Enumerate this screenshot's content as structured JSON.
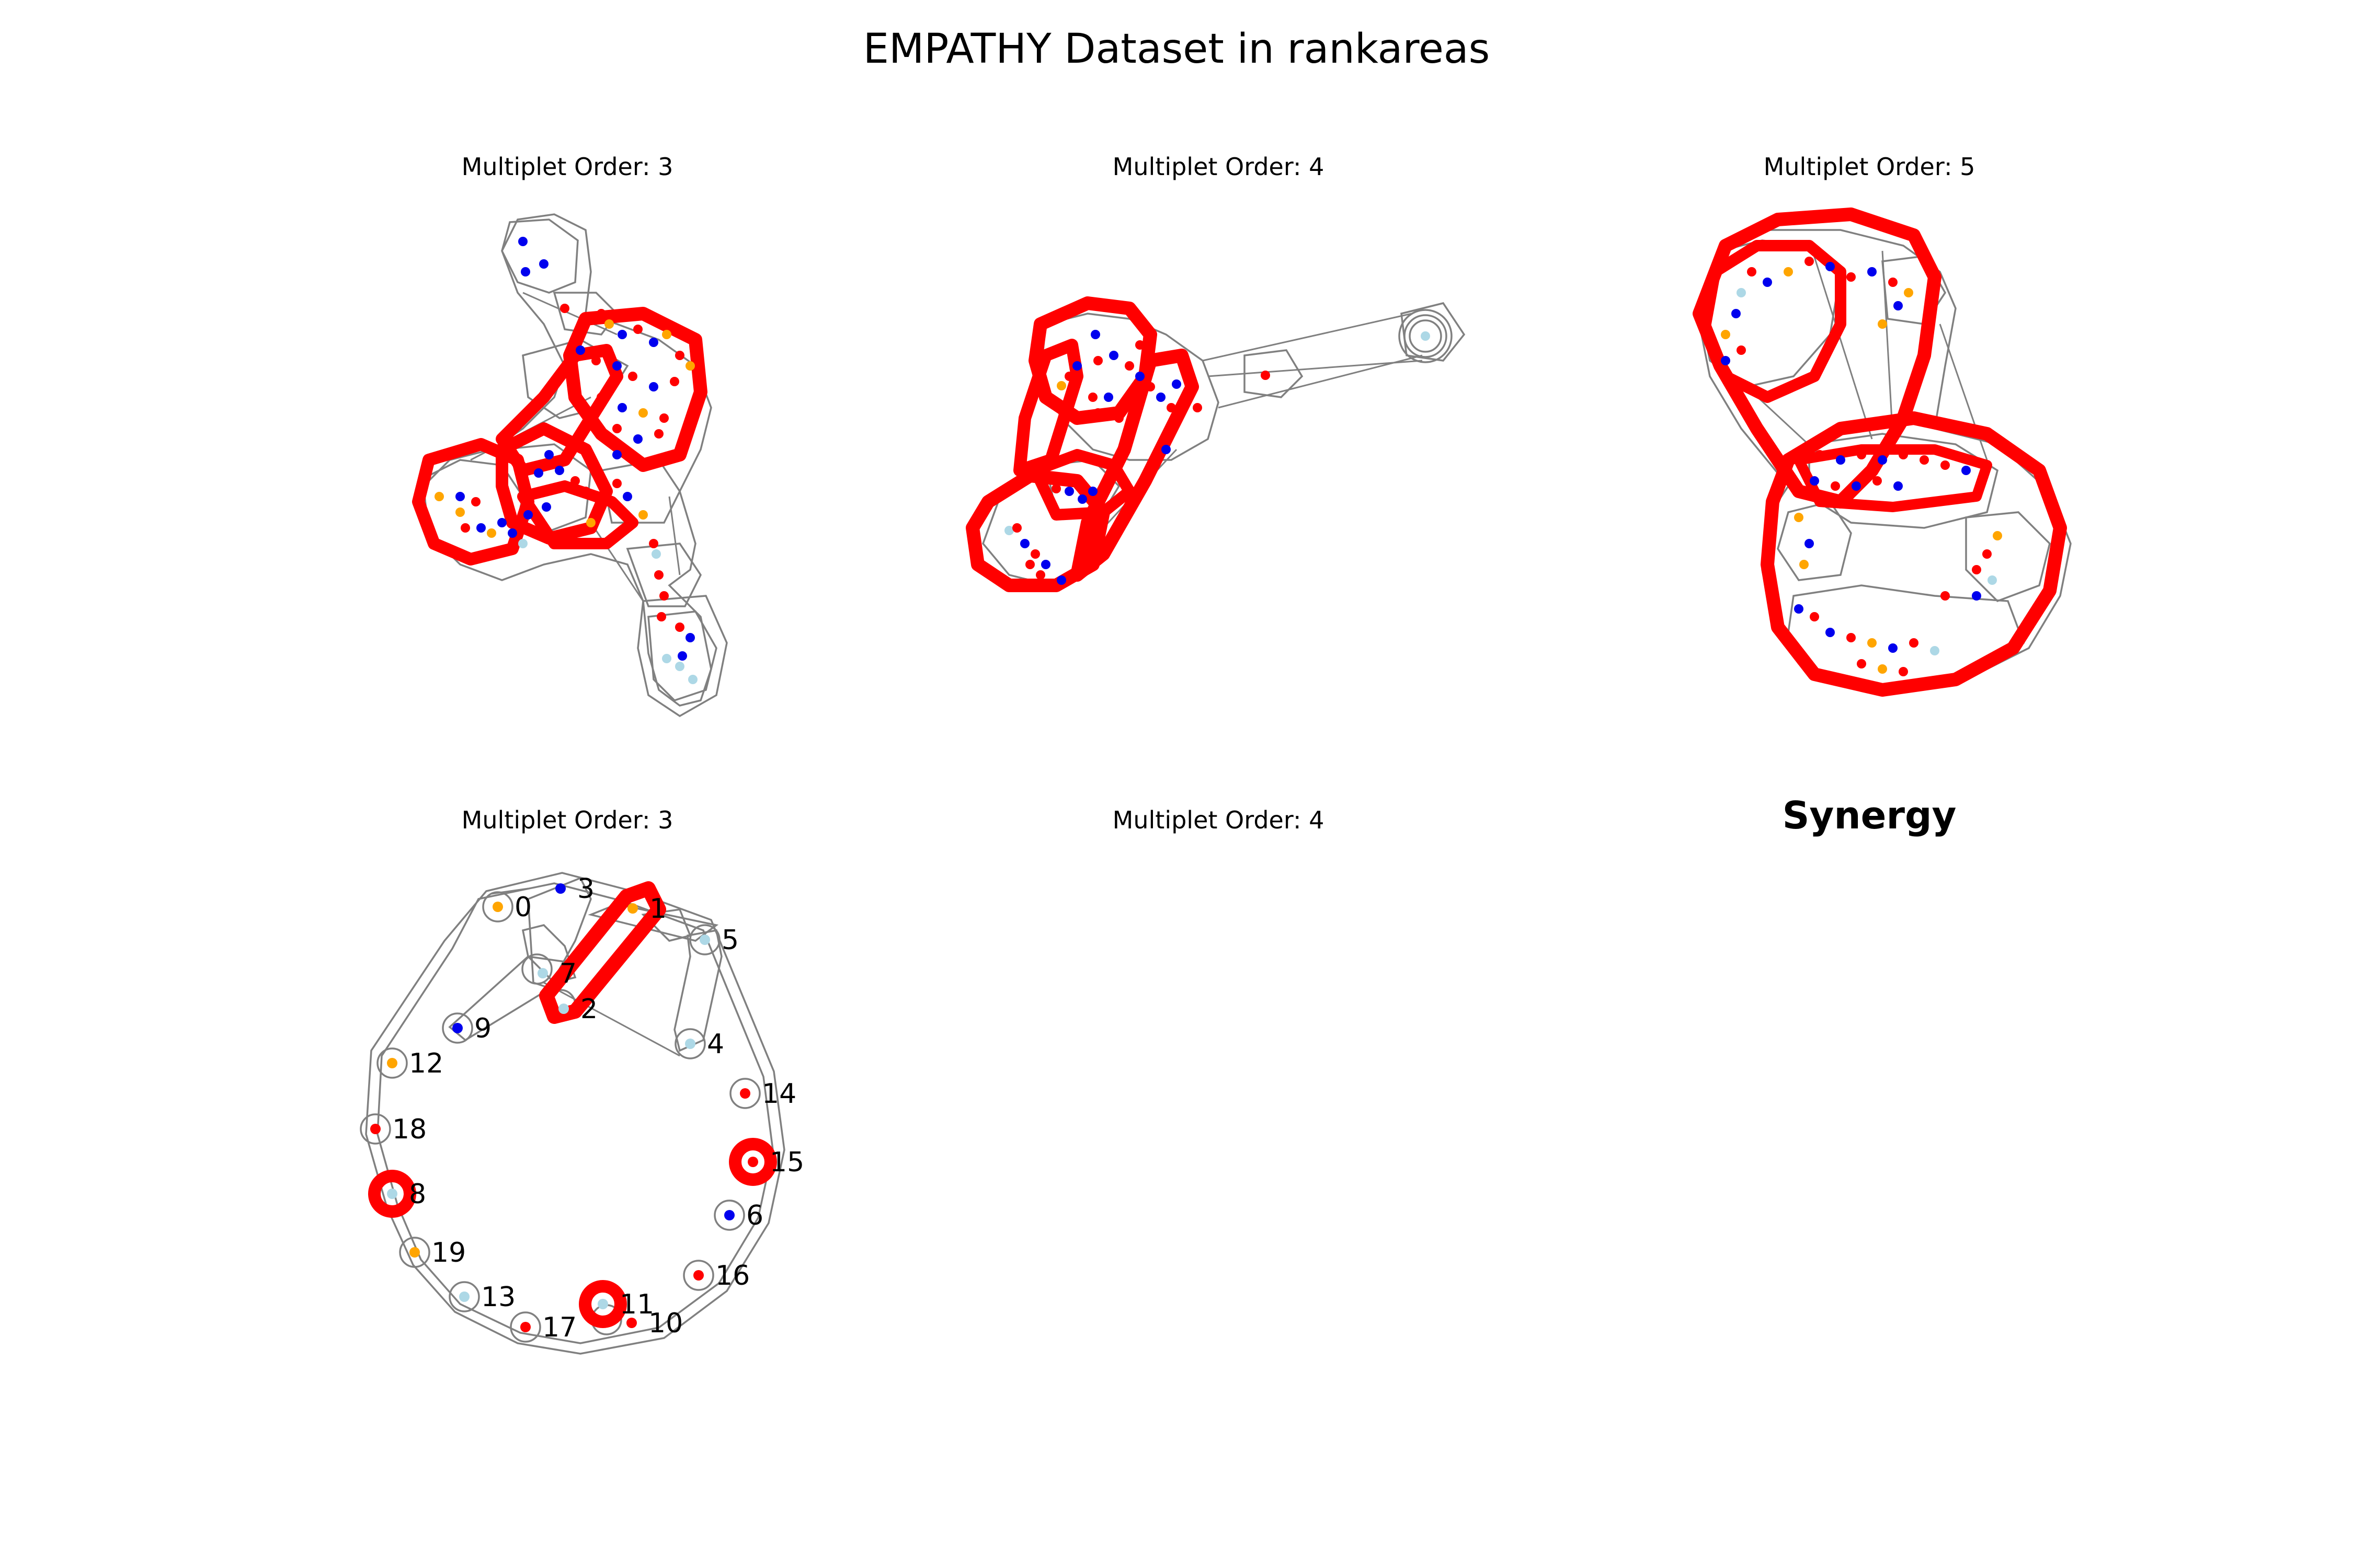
{
  "suptitle": "EMPATHY  Dataset in rankareas",
  "panel_titles": {
    "p1": "Multiplet Order: 3",
    "p2": "Multiplet Order: 4",
    "p3": "Multiplet Order: 5",
    "p4": "Multiplet Order: 3",
    "p5": "Multiplet Order: 4",
    "p6": "Synergy"
  },
  "colors": {
    "node_red": "#ff0000",
    "node_blue": "#0000ee",
    "node_orange": "#ffa500",
    "node_lightblue": "#add8e6",
    "hull": "#808080",
    "highlight": "#ff0000"
  },
  "network": {
    "nodes": [
      {
        "label": "0",
        "color": "orange"
      },
      {
        "label": "3",
        "color": "blue"
      },
      {
        "label": "1",
        "color": "orange"
      },
      {
        "label": "5",
        "color": "lightblue"
      },
      {
        "label": "7",
        "color": "lightblue"
      },
      {
        "label": "2",
        "color": "lightblue"
      },
      {
        "label": "9",
        "color": "blue"
      },
      {
        "label": "4",
        "color": "lightblue"
      },
      {
        "label": "12",
        "color": "orange"
      },
      {
        "label": "14",
        "color": "red"
      },
      {
        "label": "18",
        "color": "red"
      },
      {
        "label": "15",
        "color": "red"
      },
      {
        "label": "8",
        "color": "lightblue"
      },
      {
        "label": "6",
        "color": "blue"
      },
      {
        "label": "19",
        "color": "orange"
      },
      {
        "label": "16",
        "color": "red"
      },
      {
        "label": "13",
        "color": "lightblue"
      },
      {
        "label": "11",
        "color": "lightblue"
      },
      {
        "label": "10",
        "color": "red"
      },
      {
        "label": "17",
        "color": "red"
      }
    ]
  }
}
